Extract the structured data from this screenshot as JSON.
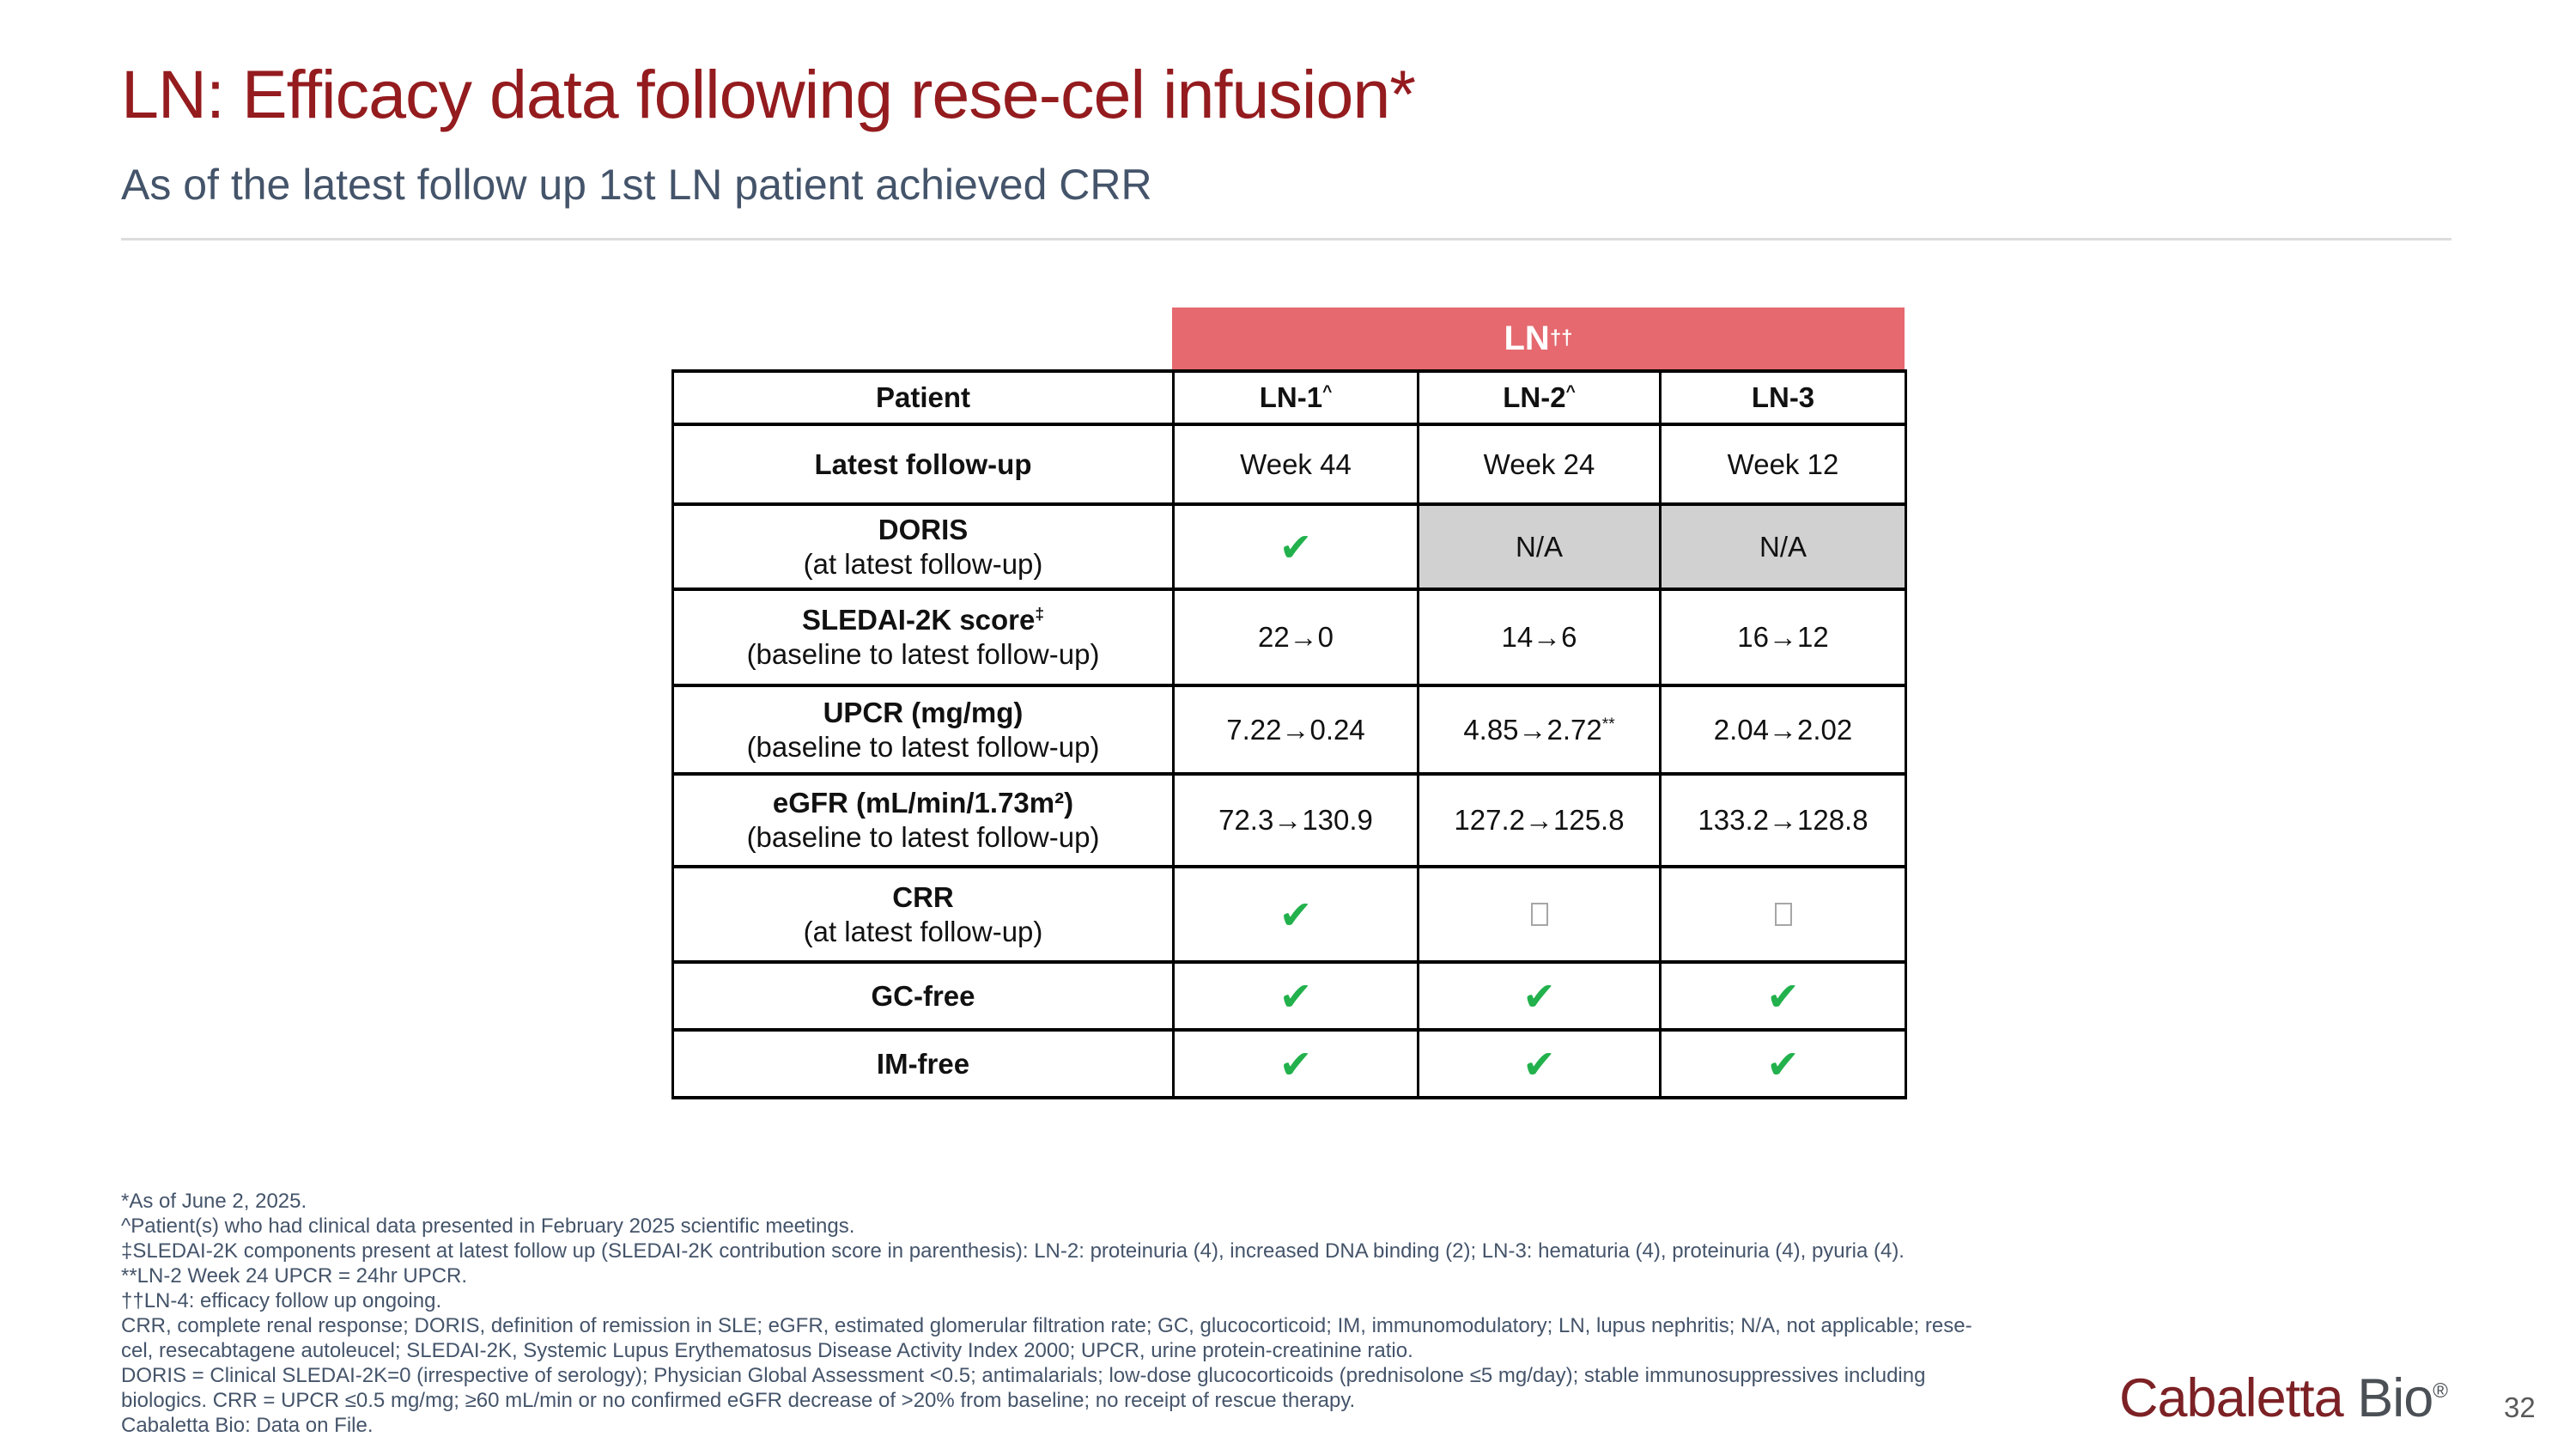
{
  "slide": {
    "title": "LN: Efficacy data following rese-cel infusion*",
    "subtitle": "As of the latest follow up 1st LN patient achieved CRR",
    "page_number": "32",
    "logo": {
      "part1": "Cabaletta",
      "part2": "Bio",
      "registered": "®"
    }
  },
  "colors": {
    "title_red": "#941b1e",
    "subtitle_slate": "#44546a",
    "band_pink": "#e5696f",
    "na_gray": "#d1d1d1",
    "check_green": "#22b14c",
    "logo_maroon": "#7c2125"
  },
  "table": {
    "band": {
      "text": "LN",
      "sup": "††"
    },
    "glyphs": {
      "check": "✔",
      "na": "N/A"
    },
    "head": {
      "c0": "Patient",
      "c1": "LN-1",
      "c1_sup": "^",
      "c2": "LN-2",
      "c2_sup": "^",
      "c3": "LN-3",
      "c3_sup": ""
    },
    "rows": {
      "followup": {
        "label": "Latest follow-up",
        "c1": "Week 44",
        "c2": "Week 24",
        "c3": "Week 12"
      },
      "doris": {
        "label": "DORIS",
        "sublabel": "(at latest follow-up)"
      },
      "sledai": {
        "label": "SLEDAI-2K score",
        "label_sup": "‡",
        "sublabel": "(baseline to latest follow-up)",
        "c1": "22→0",
        "c2": "14→6",
        "c3": "16→12"
      },
      "upcr": {
        "label": "UPCR (mg/mg)",
        "sublabel": "(baseline to latest follow-up)",
        "c1": "7.22→0.24",
        "c2": "4.85→2.72",
        "c2_sup": "**",
        "c3": "2.04→2.02"
      },
      "egfr": {
        "label": "eGFR (mL/min/1.73m²)",
        "sublabel": "(baseline to latest follow-up)",
        "c1": "72.3→130.9",
        "c2": "127.2→125.8",
        "c3": "133.2→128.8"
      },
      "crr": {
        "label": "CRR",
        "sublabel": "(at latest follow-up)"
      },
      "gcfree": {
        "label": "GC-free"
      },
      "imfree": {
        "label": "IM-free"
      }
    }
  },
  "footnotes": [
    "*As of June 2, 2025.",
    "^Patient(s) who had clinical data presented in February 2025 scientific meetings.",
    "‡SLEDAI-2K components present at latest follow up (SLEDAI-2K contribution score in parenthesis): LN-2: proteinuria (4), increased DNA binding (2); LN-3: hematuria (4), proteinuria (4), pyuria (4).",
    "**LN-2 Week 24 UPCR = 24hr UPCR.",
    "††LN-4: efficacy follow up ongoing.",
    "CRR, complete renal response; DORIS, definition of remission in SLE; eGFR, estimated glomerular filtration rate; GC, glucocorticoid; IM, immunomodulatory; LN, lupus nephritis; N/A, not applicable; rese-",
    "cel, resecabtagene autoleucel; SLEDAI-2K, Systemic Lupus Erythematosus Disease Activity Index 2000; UPCR, urine protein-creatinine ratio.",
    "DORIS = Clinical SLEDAI-2K=0 (irrespective of serology); Physician Global Assessment <0.5; antimalarials; low-dose glucocorticoids (prednisolone ≤5 mg/day); stable immunosuppressives including",
    "biologics. CRR = UPCR ≤0.5 mg/mg; ≥60 mL/min or no confirmed eGFR decrease of >20% from baseline; no receipt of rescue therapy.",
    "Cabaletta Bio: Data on File."
  ]
}
